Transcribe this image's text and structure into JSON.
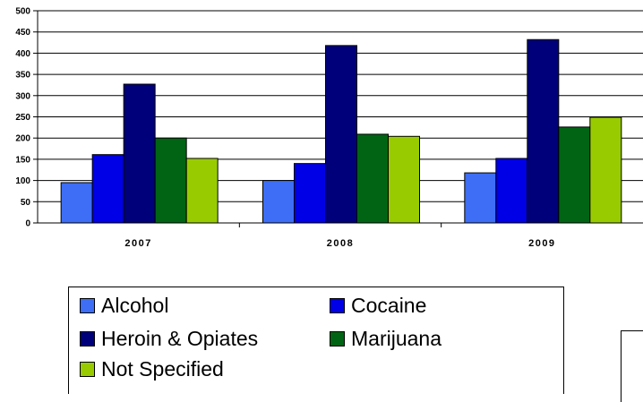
{
  "chart_data": {
    "type": "bar",
    "title": "",
    "xlabel": "",
    "ylabel": "",
    "ylim": [
      0,
      500
    ],
    "yticks": [
      "0",
      "50",
      "100",
      "150",
      "200",
      "250",
      "300",
      "350",
      "400",
      "450",
      "500"
    ],
    "grid": true,
    "legend_position": "bottom",
    "categories": [
      "2007",
      "2008",
      "2009"
    ],
    "series": [
      {
        "name": "Alcohol",
        "color": "#3d6ef5",
        "values": [
          95,
          100,
          118
        ]
      },
      {
        "name": "Cocaine",
        "color": "#0000e6",
        "values": [
          161,
          140,
          152
        ]
      },
      {
        "name": "Heroin & Opiates",
        "color": "#00007a",
        "values": [
          327,
          418,
          432
        ]
      },
      {
        "name": "Marijuana",
        "color": "#006414",
        "values": [
          200,
          209,
          226
        ]
      },
      {
        "name": "Not Specified",
        "color": "#99cc00",
        "values": [
          152,
          204,
          249
        ]
      }
    ]
  }
}
